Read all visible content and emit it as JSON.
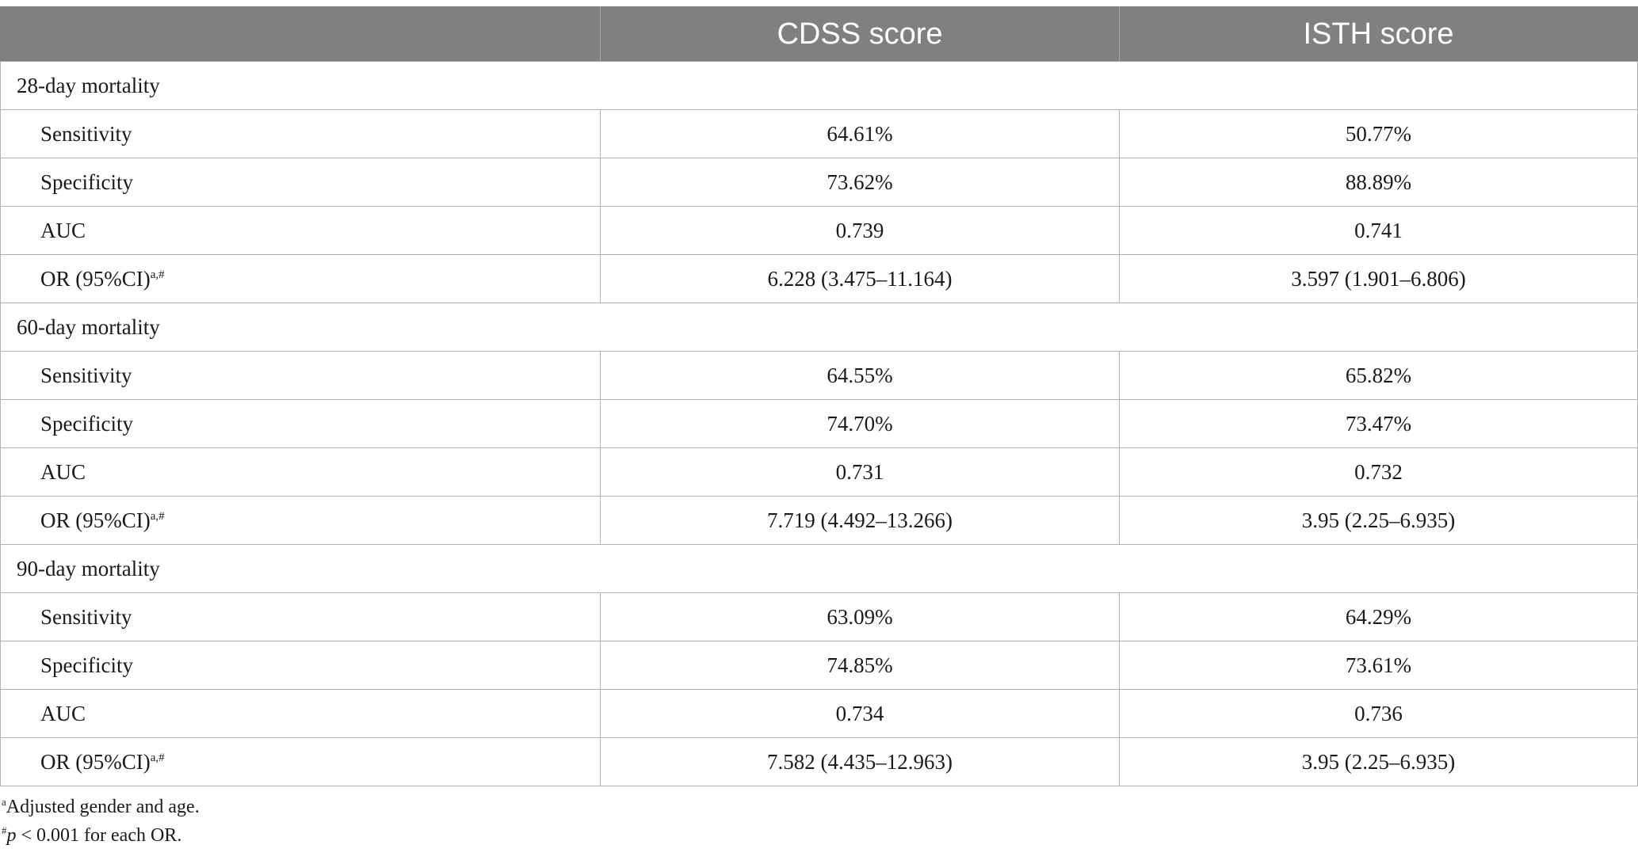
{
  "table": {
    "header": {
      "col1": "",
      "col2": "CDSS score",
      "col3": "ISTH score"
    },
    "sections": [
      {
        "title": "28-day mortality",
        "rows": [
          {
            "label": "Sensitivity",
            "cdss": "64.61%",
            "isth": "50.77%"
          },
          {
            "label": "Specificity",
            "cdss": "73.62%",
            "isth": "88.89%"
          },
          {
            "label": "AUC",
            "cdss": "0.739",
            "isth": "0.741"
          },
          {
            "label": "OR (95%CI)",
            "sup": "a,#",
            "cdss": "6.228 (3.475–11.164)",
            "isth": "3.597 (1.901–6.806)"
          }
        ]
      },
      {
        "title": "60-day mortality",
        "rows": [
          {
            "label": "Sensitivity",
            "cdss": "64.55%",
            "isth": "65.82%"
          },
          {
            "label": "Specificity",
            "cdss": "74.70%",
            "isth": "73.47%"
          },
          {
            "label": "AUC",
            "cdss": "0.731",
            "isth": "0.732"
          },
          {
            "label": "OR (95%CI)",
            "sup": "a,#",
            "cdss": "7.719 (4.492–13.266)",
            "isth": "3.95 (2.25–6.935)"
          }
        ]
      },
      {
        "title": "90-day mortality",
        "rows": [
          {
            "label": "Sensitivity",
            "cdss": "63.09%",
            "isth": "64.29%"
          },
          {
            "label": "Specificity",
            "cdss": "74.85%",
            "isth": "73.61%"
          },
          {
            "label": "AUC",
            "cdss": "0.734",
            "isth": "0.736"
          },
          {
            "label": "OR (95%CI)",
            "sup": "a,#",
            "cdss": "7.582 (4.435–12.963)",
            "isth": "3.95 (2.25–6.935)"
          }
        ]
      }
    ]
  },
  "footnotes": {
    "a": {
      "mark": "a",
      "text": "Adjusted gender and age."
    },
    "b": {
      "mark": "#",
      "italic": "p",
      "text": " < 0.001 for each OR."
    }
  }
}
